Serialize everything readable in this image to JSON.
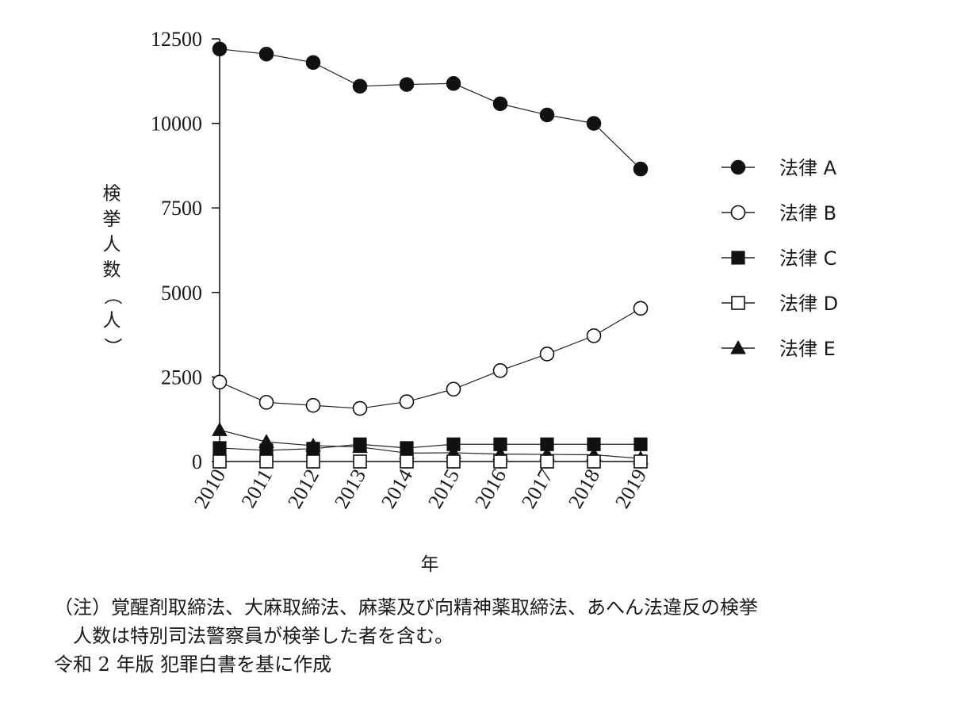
{
  "chart_data": {
    "type": "line",
    "title": "",
    "xlabel": "年",
    "ylabel": "検挙人数（人）",
    "x": [
      "2010",
      "2011",
      "2012",
      "2013",
      "2014",
      "2015",
      "2016",
      "2017",
      "2018",
      "2019"
    ],
    "ylim": [
      0,
      12500
    ],
    "yticks": [
      0,
      2500,
      5000,
      7500,
      10000,
      12500
    ],
    "grid": false,
    "legend_position": "right",
    "series": [
      {
        "name": "法律 A",
        "marker": "filled-circle",
        "values": [
          12200,
          12050,
          11800,
          11100,
          11150,
          11180,
          10580,
          10250,
          10000,
          8650
        ]
      },
      {
        "name": "法律 B",
        "marker": "open-circle",
        "values": [
          2350,
          1750,
          1660,
          1570,
          1770,
          2140,
          2690,
          3180,
          3720,
          4530
        ]
      },
      {
        "name": "法律 C",
        "marker": "filled-square",
        "values": [
          400,
          330,
          380,
          510,
          400,
          510,
          510,
          510,
          510,
          510
        ]
      },
      {
        "name": "法律 D",
        "marker": "open-square",
        "values": [
          0,
          0,
          0,
          0,
          0,
          0,
          0,
          0,
          0,
          0
        ]
      },
      {
        "name": "法律 E",
        "marker": "filled-triangle",
        "values": [
          930,
          580,
          470,
          430,
          250,
          260,
          220,
          210,
          200,
          90
        ]
      }
    ]
  },
  "notes": {
    "line1": "（注）覚醒剤取締法、大麻取締法、麻薬及び向精神薬取締法、あへん法違反の検挙",
    "line2": "人数は特別司法警察員が検挙した者を含む。",
    "source": "令和 2 年版 犯罪白書を基に作成"
  }
}
